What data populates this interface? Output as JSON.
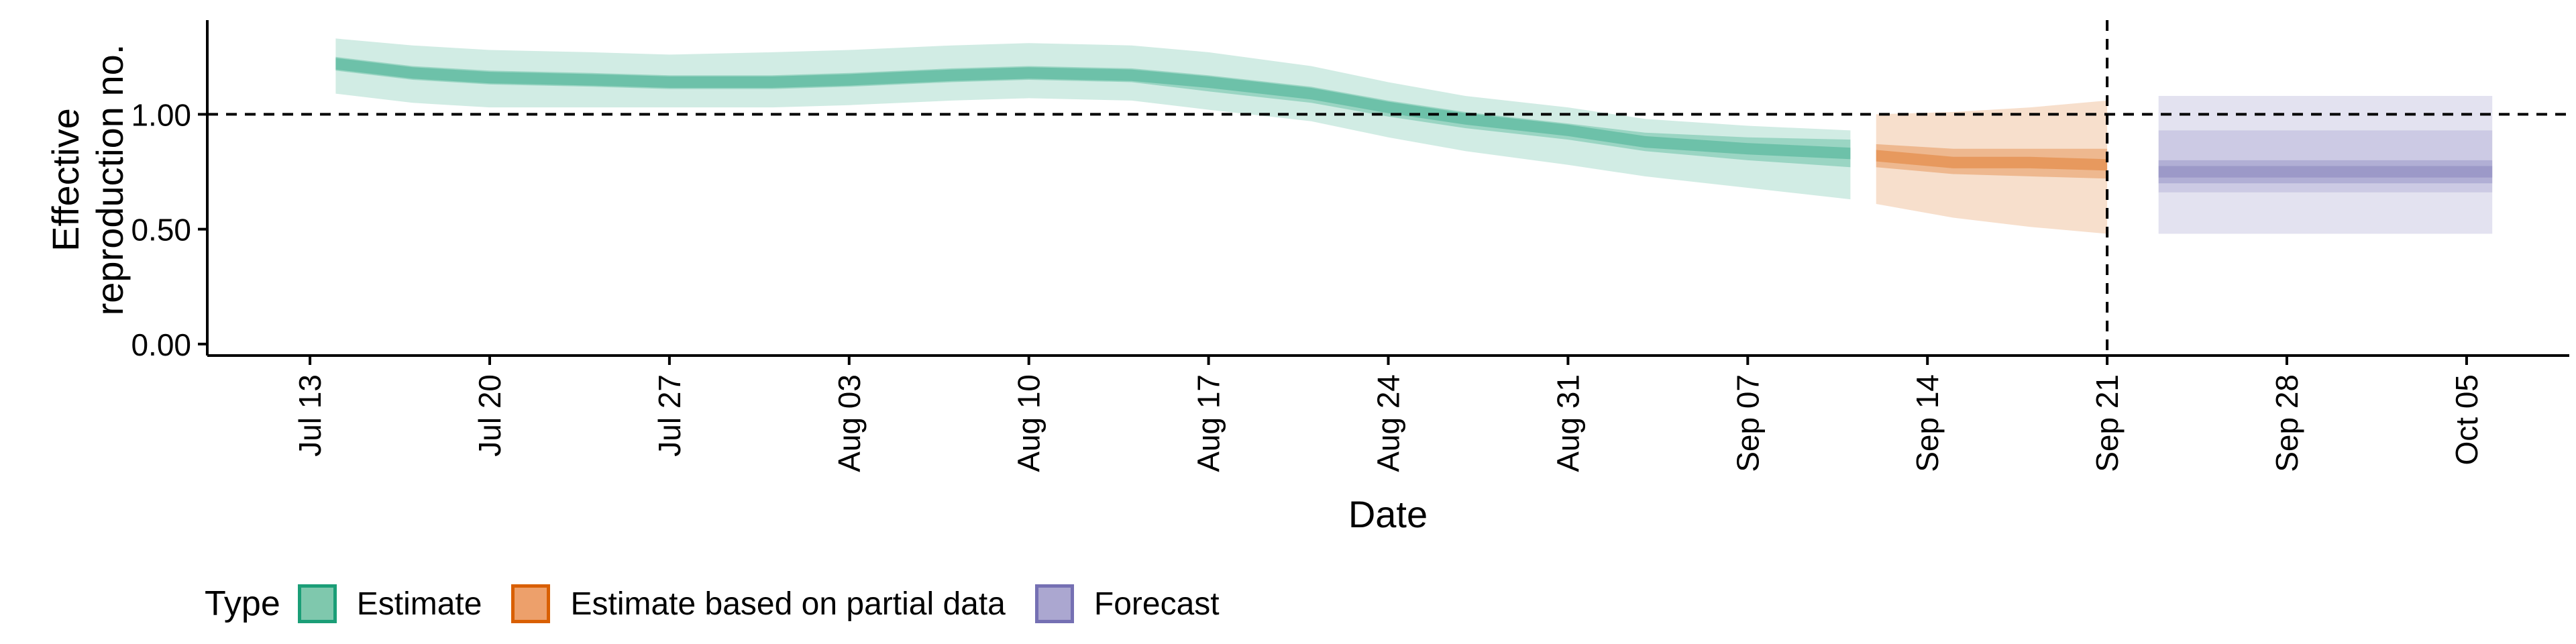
{
  "chart_data": {
    "type": "area",
    "xlabel": "Date",
    "ylabel": [
      "Effective",
      "reproduction no."
    ],
    "ylim": [
      -0.05,
      1.41
    ],
    "y_ticks": [
      0,
      0.5,
      1.0
    ],
    "y_tick_labels": [
      "0.00",
      "0.50",
      "1.00"
    ],
    "xlim": [
      "2021-07-09",
      "2021-10-09"
    ],
    "x_ticks": [
      "2021-07-13",
      "2021-07-20",
      "2021-07-27",
      "2021-08-03",
      "2021-08-10",
      "2021-08-17",
      "2021-08-24",
      "2021-08-31",
      "2021-09-07",
      "2021-09-14",
      "2021-09-21",
      "2021-09-28",
      "2021-10-05"
    ],
    "x_tick_labels": [
      "Jul 13",
      "Jul 20",
      "Jul 27",
      "Aug 03",
      "Aug 10",
      "Aug 17",
      "Aug 24",
      "Aug 31",
      "Sep 07",
      "Sep 14",
      "Sep 21",
      "Sep 28",
      "Oct 05"
    ],
    "reference_line_y": 1.0,
    "reference_line_x": "2021-09-21",
    "grid": false,
    "legend": {
      "title": "Type",
      "position": "bottom-left",
      "items": [
        {
          "label": "Estimate",
          "fill": "#7fc8ad",
          "border": "#1b9e77"
        },
        {
          "label": "Estimate based on partial data",
          "fill": "#eda06b",
          "border": "#d95f02"
        },
        {
          "label": "Forecast",
          "fill": "#aba7d0",
          "border": "#7570b3"
        }
      ]
    },
    "series": [
      {
        "name": "Estimate",
        "color": "#1b9e77",
        "x": [
          "2021-07-14",
          "2021-07-17",
          "2021-07-20",
          "2021-07-24",
          "2021-07-27",
          "2021-07-31",
          "2021-08-03",
          "2021-08-07",
          "2021-08-10",
          "2021-08-14",
          "2021-08-17",
          "2021-08-21",
          "2021-08-24",
          "2021-08-27",
          "2021-08-31",
          "2021-09-03",
          "2021-09-07",
          "2021-09-11"
        ],
        "median": [
          1.22,
          1.18,
          1.16,
          1.15,
          1.14,
          1.14,
          1.15,
          1.17,
          1.18,
          1.17,
          1.14,
          1.09,
          1.03,
          0.98,
          0.93,
          0.88,
          0.85,
          0.83
        ],
        "lower_50": [
          1.19,
          1.15,
          1.13,
          1.12,
          1.11,
          1.11,
          1.12,
          1.14,
          1.15,
          1.14,
          1.1,
          1.05,
          0.99,
          0.94,
          0.89,
          0.84,
          0.8,
          0.77
        ],
        "upper_50": [
          1.25,
          1.21,
          1.19,
          1.18,
          1.17,
          1.17,
          1.18,
          1.2,
          1.21,
          1.2,
          1.17,
          1.12,
          1.06,
          1.01,
          0.96,
          0.92,
          0.9,
          0.89
        ],
        "lower_90": [
          1.09,
          1.05,
          1.03,
          1.03,
          1.03,
          1.03,
          1.04,
          1.06,
          1.07,
          1.06,
          1.02,
          0.97,
          0.9,
          0.84,
          0.78,
          0.73,
          0.68,
          0.63
        ],
        "upper_90": [
          1.33,
          1.3,
          1.28,
          1.27,
          1.26,
          1.27,
          1.28,
          1.3,
          1.31,
          1.3,
          1.27,
          1.21,
          1.14,
          1.08,
          1.03,
          0.98,
          0.95,
          0.93
        ]
      },
      {
        "name": "Estimate based on partial data",
        "color": "#d95f02",
        "x": [
          "2021-09-12",
          "2021-09-15",
          "2021-09-18",
          "2021-09-21"
        ],
        "median": [
          0.82,
          0.79,
          0.79,
          0.78
        ],
        "lower_50": [
          0.77,
          0.74,
          0.73,
          0.72
        ],
        "upper_50": [
          0.87,
          0.85,
          0.85,
          0.85
        ],
        "lower_90": [
          0.61,
          0.55,
          0.51,
          0.48
        ],
        "upper_90": [
          1.0,
          1.01,
          1.03,
          1.06
        ]
      },
      {
        "name": "Forecast",
        "color": "#7570b3",
        "x": [
          "2021-09-23",
          "2021-10-06"
        ],
        "median": [
          0.75,
          0.75
        ],
        "lower_50": [
          0.7,
          0.7
        ],
        "upper_50": [
          0.8,
          0.8
        ],
        "lower_90": [
          0.48,
          0.48
        ],
        "upper_90": [
          1.08,
          1.08
        ],
        "mid_band": [
          0.66,
          0.93
        ]
      }
    ]
  }
}
